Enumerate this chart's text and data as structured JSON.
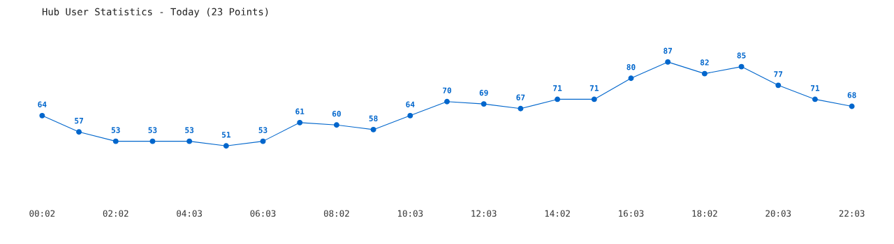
{
  "chart_data": {
    "type": "line",
    "title": "Hub User Statistics - Today (23 Points)",
    "categories": [
      "00:02",
      null,
      "02:02",
      null,
      "04:03",
      null,
      "06:03",
      null,
      "08:02",
      null,
      "10:03",
      null,
      "12:03",
      null,
      "14:02",
      null,
      "16:03",
      null,
      "18:02",
      null,
      "20:03",
      null,
      "22:03"
    ],
    "values": [
      64,
      57,
      53,
      53,
      53,
      51,
      53,
      61,
      60,
      58,
      64,
      70,
      69,
      67,
      71,
      71,
      80,
      87,
      82,
      85,
      77,
      71,
      68
    ],
    "color": "#0066cc",
    "marker": "circle",
    "data_labels": true
  }
}
